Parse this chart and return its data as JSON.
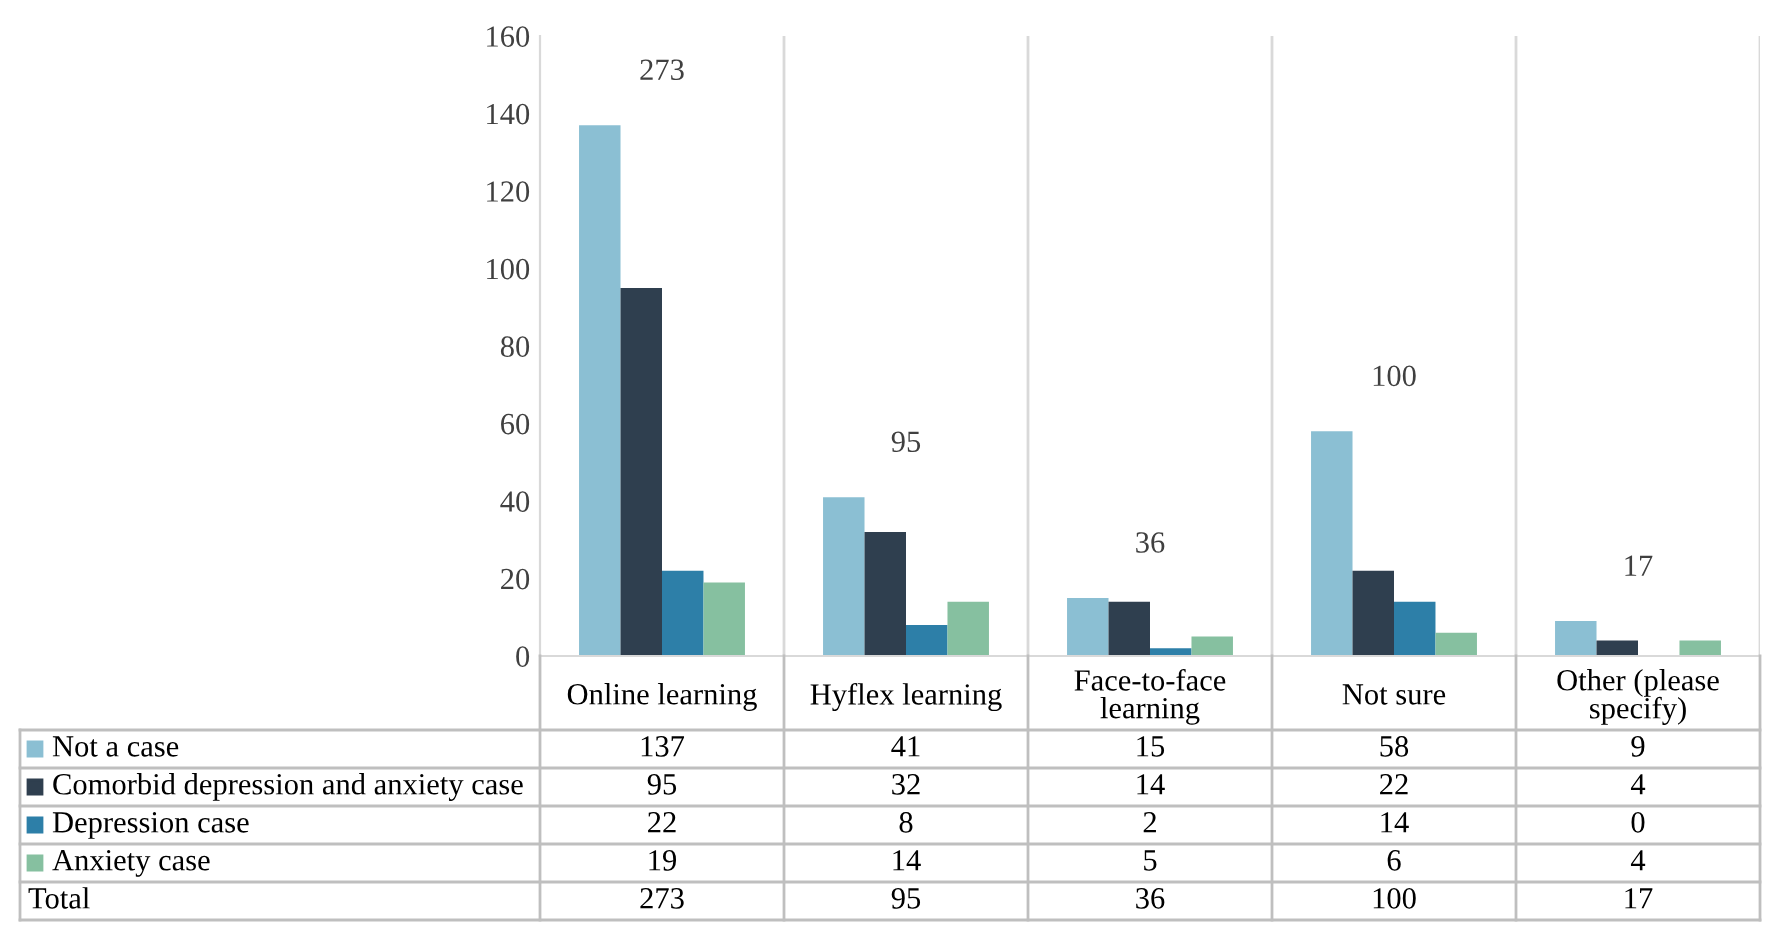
{
  "chart_data": {
    "type": "bar",
    "categories": [
      "Online learning",
      "Hyflex learning",
      "Face-to-face learning",
      "Not sure",
      "Other (please specify)"
    ],
    "series": [
      {
        "name": "Not a case",
        "color": "#8bbfd3",
        "values": [
          137,
          41,
          15,
          58,
          9
        ]
      },
      {
        "name": "Comorbid depression and anxiety case",
        "color": "#2f3f4f",
        "values": [
          95,
          32,
          14,
          22,
          4
        ]
      },
      {
        "name": "Depression case",
        "color": "#2d7fa8",
        "values": [
          22,
          8,
          2,
          14,
          0
        ]
      },
      {
        "name": "Anxiety case",
        "color": "#86c0a0",
        "values": [
          19,
          14,
          5,
          6,
          4
        ]
      }
    ],
    "ylim": [
      0,
      160
    ],
    "yticks": [
      0,
      20,
      40,
      60,
      80,
      100,
      120,
      140,
      160
    ],
    "data_labels": true,
    "annotations": [
      "Total"
    ],
    "legend": "bottom left",
    "totals": [
      "273",
      "95",
      "36",
      "100",
      "17"
    ]
  }
}
